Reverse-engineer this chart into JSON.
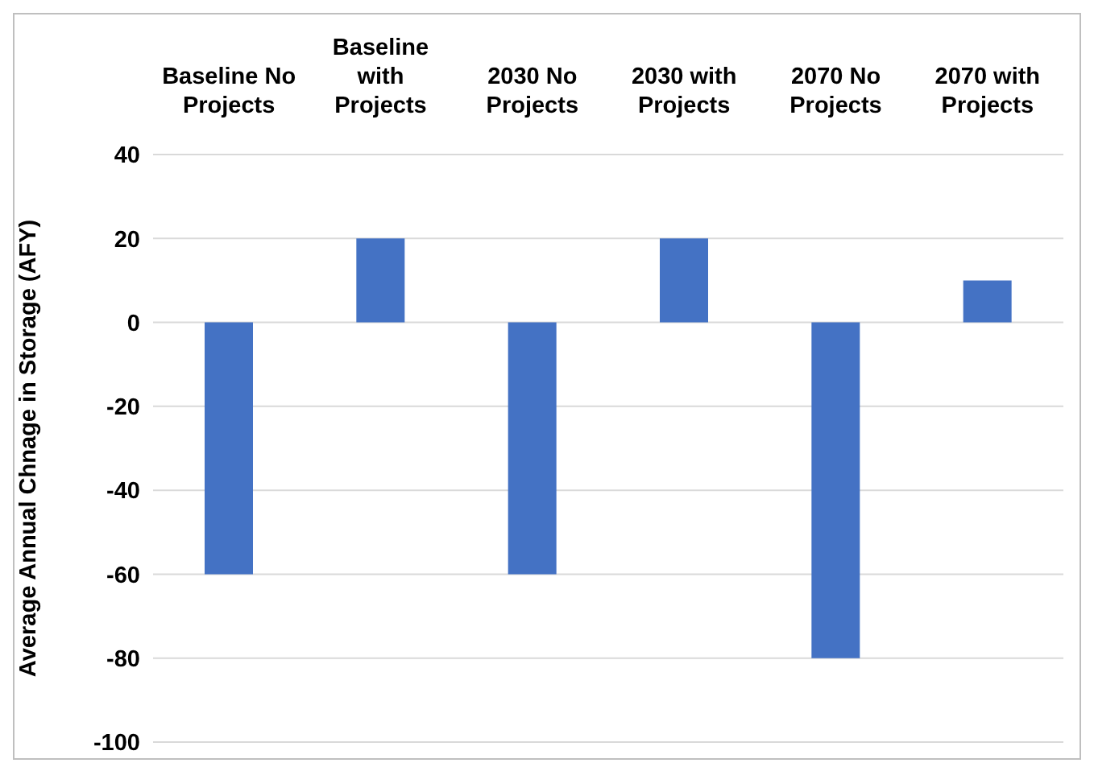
{
  "chart_data": {
    "type": "bar",
    "ylabel": "Average Annual Chnage in Storage (AFY)",
    "categories": [
      "Baseline No Projects",
      "Baseline with Projects",
      "2030 No Projects",
      "2030 with Projects",
      "2070 No Projects",
      "2070 with Projects"
    ],
    "values": [
      -60,
      20,
      -60,
      20,
      -80,
      10
    ],
    "color": "#4472c4",
    "ylim": [
      -100,
      40
    ],
    "yticks": [
      -100,
      -80,
      -60,
      -40,
      -20,
      0,
      20,
      40
    ],
    "grid": "y"
  }
}
